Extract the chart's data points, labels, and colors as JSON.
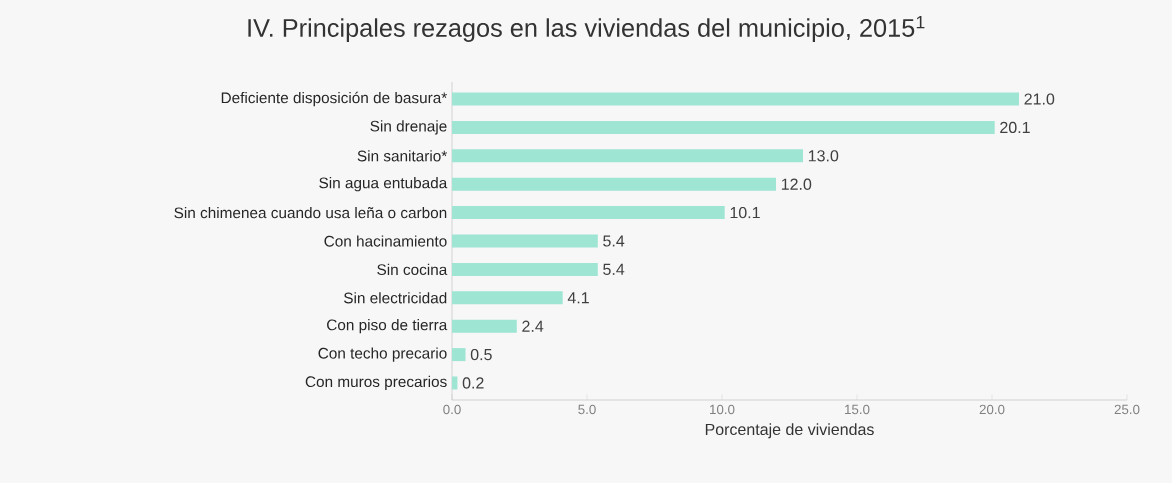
{
  "chart_data": {
    "type": "bar",
    "orientation": "horizontal",
    "title": "IV. Principales rezagos en las viviendas del municipio, 2015$^{1}$",
    "xlabel": "Porcentaje de viviendas",
    "categories": [
      "Deficiente disposición de basura*",
      "Sin drenaje",
      "Sin sanitario*",
      "Sin agua entubada",
      "Sin chimenea cuando usa leña o carbon",
      "Con hacinamiento",
      "Sin cocina",
      "Sin electricidad",
      "Con piso de tierra",
      "Con techo precario",
      "Con muros precarios"
    ],
    "values": [
      21.0,
      20.1,
      13.0,
      12.0,
      10.1,
      5.4,
      5.4,
      4.1,
      2.4,
      0.5,
      0.2
    ],
    "color": "#9ee6d3",
    "xlim": [
      0,
      25
    ],
    "xticks": [
      {
        "value": 0,
        "label": "0.0"
      },
      {
        "value": 5,
        "label": "5.0"
      },
      {
        "value": 10,
        "label": "10.0"
      },
      {
        "value": 15,
        "label": "15.0"
      },
      {
        "value": 20,
        "label": "20.0"
      },
      {
        "value": 25,
        "label": "25.0"
      }
    ],
    "value_labels": [
      "21.0",
      "20.1",
      "13.0",
      "12.0",
      "10.1",
      "5.4",
      "5.4",
      "4.1",
      "2.4",
      "0.5",
      "0.2"
    ],
    "grid": false
  }
}
